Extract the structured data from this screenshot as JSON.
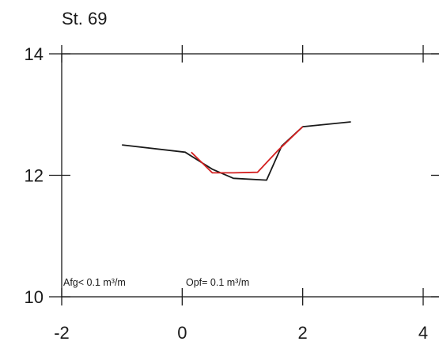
{
  "chart_data": {
    "type": "line",
    "title": "St. 69",
    "xlabel": "",
    "ylabel": "",
    "xlim": [
      -2,
      4
    ],
    "ylim": [
      10,
      14
    ],
    "x_ticks": [
      -2,
      0,
      2,
      4
    ],
    "y_ticks": [
      10,
      12,
      14
    ],
    "x_tick_labels": [
      "-2",
      "0",
      "2",
      "4"
    ],
    "y_tick_labels": [
      "10",
      "12",
      "14"
    ],
    "grid": false,
    "annotations": [
      "Afg< 0.1 m³/m",
      "Opf= 0.1 m³/m"
    ],
    "series": [
      {
        "color": "#1a1a1a",
        "x": [
          -1.0,
          0.05,
          0.5,
          0.85,
          1.4,
          1.65,
          2.0,
          2.8
        ],
        "y": [
          12.5,
          12.38,
          12.1,
          11.95,
          11.92,
          12.48,
          12.8,
          12.88
        ]
      },
      {
        "color": "#d42020",
        "x": [
          0.15,
          0.5,
          0.85,
          1.25,
          1.6,
          2.0
        ],
        "y": [
          12.38,
          12.04,
          12.04,
          12.05,
          12.42,
          12.8
        ]
      }
    ]
  }
}
